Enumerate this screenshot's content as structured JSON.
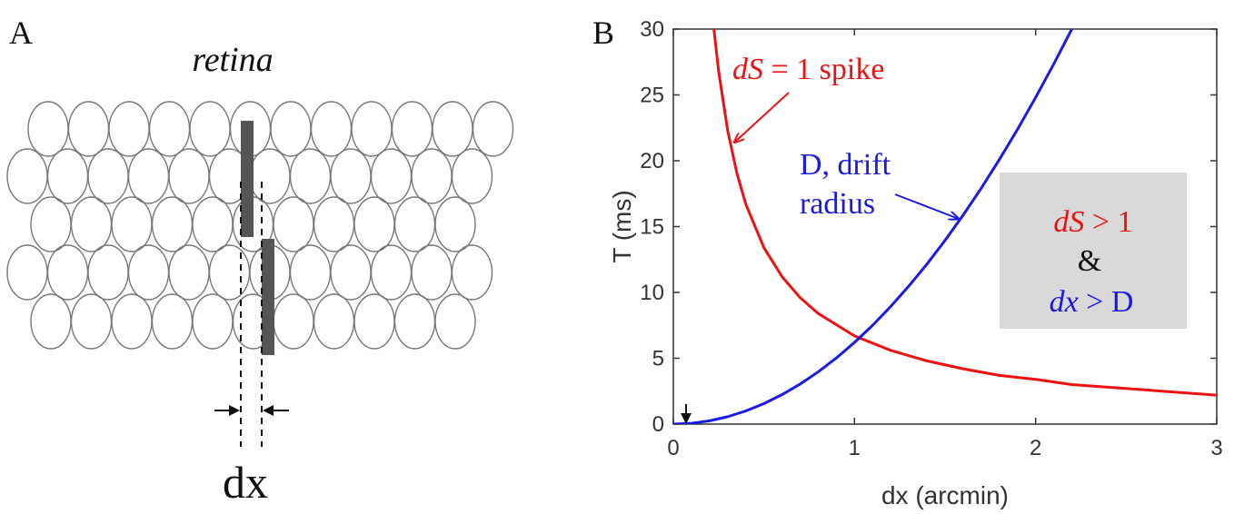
{
  "panel_a": {
    "label": "A",
    "title": "retina",
    "dx_label": "dx"
  },
  "panel_b": {
    "label": "B",
    "annotation_ds_spike": {
      "ds": "dS",
      "rest": " = 1 spike"
    },
    "annotation_drift": {
      "line1": "D, drift",
      "line2": "radius"
    },
    "box": {
      "line1_ds": "dS",
      "line1_rest": " > 1",
      "line2": "&",
      "line3_dx": "dx",
      "line3_rest": " > D"
    }
  },
  "colors": {
    "red": "#ee1111",
    "blue": "#1a1ae6",
    "bar": "#555555",
    "box_fill": "#d9d9d9",
    "cell_stroke": "#777777"
  },
  "chart_data": {
    "type": "line",
    "xlabel": "dx (arcmin)",
    "ylabel": "T (ms)",
    "xlim": [
      0,
      3
    ],
    "ylim": [
      0,
      30
    ],
    "xticks": [
      0,
      1,
      2,
      3
    ],
    "yticks": [
      0,
      5,
      10,
      15,
      20,
      25,
      30
    ],
    "grid": false,
    "series": [
      {
        "name": "dS = 1 spike",
        "color": "#ee1111",
        "x": [
          0.22,
          0.25,
          0.3,
          0.35,
          0.4,
          0.5,
          0.6,
          0.7,
          0.8,
          1.0,
          1.2,
          1.4,
          1.6,
          1.8,
          2.0,
          2.2,
          2.4,
          2.6,
          2.8,
          3.0
        ],
        "y": [
          30.5,
          26.8,
          22.3,
          19.1,
          16.7,
          13.4,
          11.2,
          9.6,
          8.4,
          6.7,
          5.6,
          4.8,
          4.2,
          3.7,
          3.4,
          3.0,
          2.8,
          2.6,
          2.4,
          2.2
        ]
      },
      {
        "name": "D, drift radius",
        "color": "#1a1ae6",
        "x": [
          0.0,
          0.1,
          0.2,
          0.3,
          0.4,
          0.5,
          0.6,
          0.7,
          0.8,
          0.9,
          1.0,
          1.1,
          1.2,
          1.3,
          1.4,
          1.5,
          1.6,
          1.7,
          1.8,
          1.9,
          2.0,
          2.1,
          2.2
        ],
        "y": [
          0.0,
          0.06,
          0.25,
          0.56,
          1.0,
          1.55,
          2.24,
          3.04,
          3.97,
          5.02,
          6.2,
          7.5,
          8.93,
          10.48,
          12.15,
          13.95,
          15.87,
          17.92,
          20.09,
          22.38,
          24.8,
          27.34,
          30.0
        ]
      }
    ],
    "annotations": [
      {
        "kind": "arrow-down-marker",
        "x": 0.05,
        "y": 0.7
      }
    ]
  }
}
